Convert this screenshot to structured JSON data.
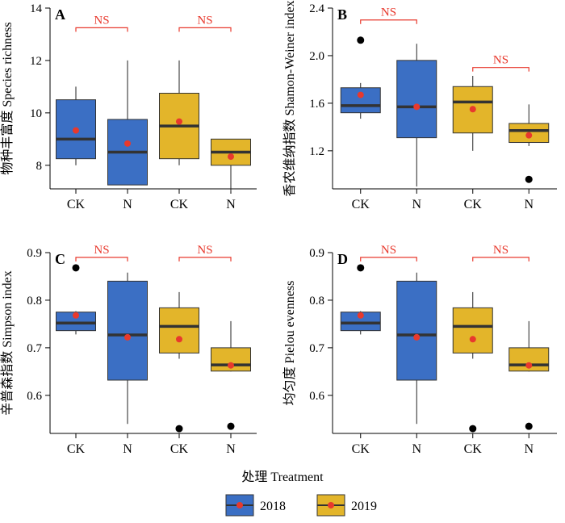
{
  "colors": {
    "y2018": "#3b6fc4",
    "y2019": "#e3b52a",
    "mean": "#e8392d",
    "outlier": "#000000",
    "bracket": "#e8392d"
  },
  "xaxis_title": "处理 Treatment",
  "legend": {
    "entries": [
      {
        "label": "2018",
        "color": "#3b6fc4"
      },
      {
        "label": "2019",
        "color": "#e3b52a"
      }
    ]
  },
  "chart_data": [
    {
      "type": "box",
      "panel": "A",
      "ylabel": "物种丰富度 Species richness",
      "ylim": [
        7.1,
        14
      ],
      "yticks": [
        8,
        10,
        12,
        14
      ],
      "tick_labels": [
        "8",
        "10",
        "12",
        "14"
      ],
      "categories": [
        "CK",
        "N",
        "CK",
        "N"
      ],
      "boxes": [
        {
          "year": "2018",
          "min": 8,
          "q1": 8.25,
          "median": 9,
          "q3": 10.5,
          "max": 11,
          "mean": 9.33,
          "outliers": []
        },
        {
          "year": "2018",
          "min": 7.25,
          "q1": 7.25,
          "median": 8.5,
          "q3": 9.75,
          "max": 12,
          "mean": 8.83,
          "outliers": []
        },
        {
          "year": "2019",
          "min": 8,
          "q1": 8.25,
          "median": 9.5,
          "q3": 10.75,
          "max": 12,
          "mean": 9.67,
          "outliers": []
        },
        {
          "year": "2019",
          "min": 7,
          "q1": 8,
          "median": 8.5,
          "q3": 9,
          "max": 9,
          "mean": 8.33,
          "outliers": []
        }
      ],
      "significance": [
        {
          "pair": [
            0,
            1
          ],
          "label": "NS",
          "y": 13.25
        },
        {
          "pair": [
            2,
            3
          ],
          "label": "NS",
          "y": 13.25
        }
      ]
    },
    {
      "type": "box",
      "panel": "B",
      "ylabel": "香农维纳指数 Shamon-Weiner index",
      "ylim": [
        0.88,
        2.4
      ],
      "yticks": [
        1.2,
        1.6,
        2.0,
        2.4
      ],
      "tick_labels": [
        "1.2",
        "1.6",
        "2.0",
        "2.4"
      ],
      "categories": [
        "CK",
        "N",
        "CK",
        "N"
      ],
      "boxes": [
        {
          "year": "2018",
          "min": 1.47,
          "q1": 1.52,
          "median": 1.58,
          "q3": 1.73,
          "max": 1.77,
          "mean": 1.67,
          "outliers": [
            2.13
          ]
        },
        {
          "year": "2018",
          "min": 0.9,
          "q1": 1.31,
          "median": 1.57,
          "q3": 1.96,
          "max": 2.1,
          "mean": 1.57,
          "outliers": []
        },
        {
          "year": "2019",
          "min": 1.2,
          "q1": 1.35,
          "median": 1.61,
          "q3": 1.74,
          "max": 1.83,
          "mean": 1.55,
          "outliers": []
        },
        {
          "year": "2019",
          "min": 1.24,
          "q1": 1.27,
          "median": 1.37,
          "q3": 1.43,
          "max": 1.59,
          "mean": 1.33,
          "outliers": [
            0.96
          ]
        }
      ],
      "significance": [
        {
          "pair": [
            0,
            1
          ],
          "label": "NS",
          "y": 2.3
        },
        {
          "pair": [
            2,
            3
          ],
          "label": "NS",
          "y": 1.9
        }
      ]
    },
    {
      "type": "box",
      "panel": "C",
      "ylabel": "辛普森指数 Simpson index",
      "ylim": [
        0.52,
        0.9
      ],
      "yticks": [
        0.6,
        0.7,
        0.8,
        0.9
      ],
      "tick_labels": [
        "0.6",
        "0.7",
        "0.8",
        "0.9"
      ],
      "categories": [
        "CK",
        "N",
        "CK",
        "N"
      ],
      "boxes": [
        {
          "year": "2018",
          "min": 0.728,
          "q1": 0.736,
          "median": 0.752,
          "q3": 0.775,
          "max": 0.777,
          "mean": 0.768,
          "outliers": [
            0.868
          ]
        },
        {
          "year": "2018",
          "min": 0.54,
          "q1": 0.632,
          "median": 0.727,
          "q3": 0.84,
          "max": 0.858,
          "mean": 0.722,
          "outliers": []
        },
        {
          "year": "2019",
          "min": 0.677,
          "q1": 0.689,
          "median": 0.745,
          "q3": 0.784,
          "max": 0.817,
          "mean": 0.718,
          "outliers": [
            0.53
          ]
        },
        {
          "year": "2019",
          "min": 0.65,
          "q1": 0.651,
          "median": 0.664,
          "q3": 0.7,
          "max": 0.756,
          "mean": 0.663,
          "outliers": [
            0.535
          ]
        }
      ],
      "significance": [
        {
          "pair": [
            0,
            1
          ],
          "label": "NS",
          "y": 0.89
        },
        {
          "pair": [
            2,
            3
          ],
          "label": "NS",
          "y": 0.89
        }
      ]
    },
    {
      "type": "box",
      "panel": "D",
      "ylabel": "均匀度 Pielou evenness",
      "ylim": [
        0.52,
        0.9
      ],
      "yticks": [
        0.6,
        0.7,
        0.8,
        0.9
      ],
      "tick_labels": [
        "0.6",
        "0.7",
        "0.8",
        "0.9"
      ],
      "categories": [
        "CK",
        "N",
        "CK",
        "N"
      ],
      "boxes": [
        {
          "year": "2018",
          "min": 0.728,
          "q1": 0.736,
          "median": 0.752,
          "q3": 0.775,
          "max": 0.777,
          "mean": 0.768,
          "outliers": [
            0.868
          ]
        },
        {
          "year": "2018",
          "min": 0.54,
          "q1": 0.632,
          "median": 0.727,
          "q3": 0.84,
          "max": 0.858,
          "mean": 0.722,
          "outliers": []
        },
        {
          "year": "2019",
          "min": 0.677,
          "q1": 0.689,
          "median": 0.745,
          "q3": 0.784,
          "max": 0.817,
          "mean": 0.718,
          "outliers": [
            0.53
          ]
        },
        {
          "year": "2019",
          "min": 0.65,
          "q1": 0.651,
          "median": 0.664,
          "q3": 0.7,
          "max": 0.756,
          "mean": 0.663,
          "outliers": [
            0.535
          ]
        }
      ],
      "significance": [
        {
          "pair": [
            0,
            1
          ],
          "label": "NS",
          "y": 0.89
        },
        {
          "pair": [
            2,
            3
          ],
          "label": "NS",
          "y": 0.89
        }
      ]
    }
  ]
}
